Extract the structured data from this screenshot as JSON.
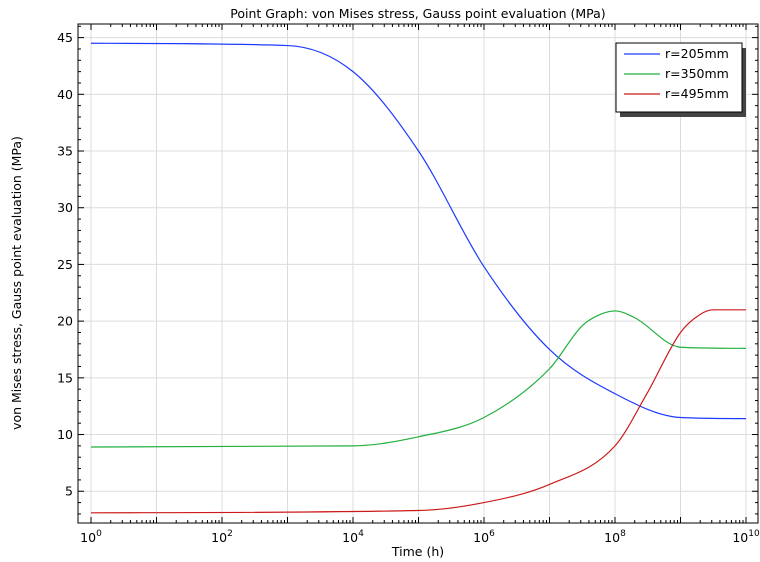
{
  "chart_data": {
    "type": "line",
    "title": "Point Graph: von Mises stress, Gauss point evaluation (MPa)",
    "xlabel": "Time (h)",
    "ylabel": "von Mises stress, Gauss point evaluation (MPa)",
    "x_scale": "log",
    "xlim": [
      1,
      10000000000
    ],
    "ylim": [
      2.2,
      46.2
    ],
    "grid": true,
    "legend_position": "top-right",
    "x_ticks": [
      {
        "base": "10",
        "exp": "0",
        "value": 1
      },
      {
        "base": "10",
        "exp": "2",
        "value": 100
      },
      {
        "base": "10",
        "exp": "4",
        "value": 10000
      },
      {
        "base": "10",
        "exp": "6",
        "value": 1000000
      },
      {
        "base": "10",
        "exp": "8",
        "value": 100000000
      },
      {
        "base": "10",
        "exp": "10",
        "value": 10000000000
      }
    ],
    "y_ticks": [
      "5",
      "10",
      "15",
      "20",
      "25",
      "30",
      "35",
      "40",
      "45"
    ],
    "series": [
      {
        "name": "r=205mm",
        "color": "#1f3bff",
        "x": [
          1,
          1000,
          10000,
          100000,
          1000000,
          10000000,
          100000000,
          1000000000,
          10000000000
        ],
        "y": [
          44.5,
          44.3,
          42.0,
          35.0,
          24.8,
          17.5,
          13.6,
          11.5,
          11.4
        ]
      },
      {
        "name": "r=350mm",
        "color": "#22b040",
        "x": [
          1,
          10000,
          100000,
          1000000,
          10000000,
          31600000,
          60000000,
          100000000,
          200000000,
          1000000000,
          10000000000
        ],
        "y": [
          8.9,
          9.0,
          9.8,
          11.5,
          15.8,
          19.6,
          20.6,
          20.9,
          20.3,
          17.7,
          17.6
        ]
      },
      {
        "name": "r=495mm",
        "color": "#cc1a1a",
        "x": [
          1,
          100000,
          1000000,
          10000000,
          100000000,
          300000000,
          1000000000,
          2000000000,
          3160000000,
          10000000000
        ],
        "y": [
          3.1,
          3.3,
          4.0,
          5.6,
          9.0,
          13.5,
          19.0,
          20.6,
          21.0,
          21.0
        ]
      }
    ]
  }
}
